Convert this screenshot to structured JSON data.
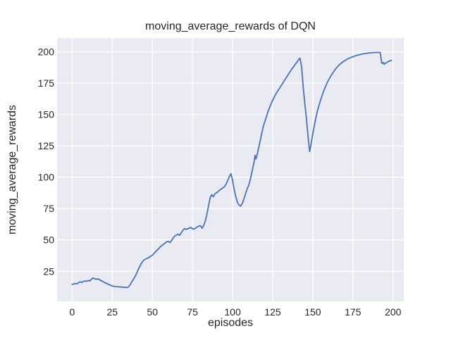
{
  "chart_data": {
    "type": "line",
    "title": "moving_average_rewards of DQN",
    "xlabel": "episodes",
    "ylabel": "moving_average_rewards",
    "x_ticks": [
      0,
      25,
      50,
      75,
      100,
      125,
      150,
      175,
      200
    ],
    "y_ticks": [
      25,
      50,
      75,
      100,
      125,
      150,
      175,
      200
    ],
    "xlim": [
      -9.4,
      206.7
    ],
    "ylim": [
      1,
      211
    ],
    "grid": true,
    "legend_position": "none",
    "style": {
      "line_color": "#4C72B0",
      "plot_bg": "#EAEAF2",
      "grid_color": "#FFFFFF",
      "figure_bg": "#FFFFFF",
      "text_color": "#262626"
    },
    "series": [
      {
        "name": "moving_average_rewards",
        "points": [
          [
            0,
            14.6
          ],
          [
            1,
            14.9
          ],
          [
            2,
            15.3
          ],
          [
            3,
            15.0
          ],
          [
            4,
            15.9
          ],
          [
            5,
            16.6
          ],
          [
            6,
            16.1
          ],
          [
            7,
            16.9
          ],
          [
            8,
            17.3
          ],
          [
            9,
            17.0
          ],
          [
            10,
            17.7
          ],
          [
            11,
            17.3
          ],
          [
            12,
            18.7
          ],
          [
            13,
            19.6
          ],
          [
            14,
            19.1
          ],
          [
            15,
            18.6
          ],
          [
            16,
            19.0
          ],
          [
            17,
            18.3
          ],
          [
            18,
            17.6
          ],
          [
            19,
            16.9
          ],
          [
            20,
            16.2
          ],
          [
            21,
            15.6
          ],
          [
            22,
            15.0
          ],
          [
            23,
            14.4
          ],
          [
            24,
            13.8
          ],
          [
            25,
            13.3
          ],
          [
            26,
            13.0
          ],
          [
            27,
            12.8
          ],
          [
            28,
            12.7
          ],
          [
            29,
            12.6
          ],
          [
            30,
            12.5
          ],
          [
            31,
            12.4
          ],
          [
            32,
            12.3
          ],
          [
            33,
            12.2
          ],
          [
            34,
            12.0
          ],
          [
            35,
            12.4
          ],
          [
            36,
            14.0
          ],
          [
            37,
            16.2
          ],
          [
            38,
            18.3
          ],
          [
            39,
            20.3
          ],
          [
            40,
            22.8
          ],
          [
            41,
            25.8
          ],
          [
            42,
            28.5
          ],
          [
            43,
            31.0
          ],
          [
            44,
            33.0
          ],
          [
            45,
            34.2
          ],
          [
            46,
            34.9
          ],
          [
            47,
            35.5
          ],
          [
            48,
            36.2
          ],
          [
            49,
            37.0
          ],
          [
            50,
            37.8
          ],
          [
            51,
            39.2
          ],
          [
            52,
            40.6
          ],
          [
            53,
            41.9
          ],
          [
            54,
            43.2
          ],
          [
            55,
            44.6
          ],
          [
            56,
            45.6
          ],
          [
            57,
            46.6
          ],
          [
            58,
            47.6
          ],
          [
            59,
            48.6
          ],
          [
            60,
            48.8
          ],
          [
            61,
            47.9
          ],
          [
            62,
            49.6
          ],
          [
            63,
            51.6
          ],
          [
            64,
            53.1
          ],
          [
            65,
            53.9
          ],
          [
            66,
            54.6
          ],
          [
            67,
            53.7
          ],
          [
            68,
            55.6
          ],
          [
            69,
            57.6
          ],
          [
            70,
            59.1
          ],
          [
            71,
            58.4
          ],
          [
            72,
            58.9
          ],
          [
            73,
            59.4
          ],
          [
            74,
            59.9
          ],
          [
            75,
            58.9
          ],
          [
            76,
            58.6
          ],
          [
            77,
            59.6
          ],
          [
            78,
            60.3
          ],
          [
            79,
            61.1
          ],
          [
            80,
            61.3
          ],
          [
            81,
            59.3
          ],
          [
            82,
            61.6
          ],
          [
            83,
            65.1
          ],
          [
            84,
            70.6
          ],
          [
            85,
            77.1
          ],
          [
            86,
            83.6
          ],
          [
            87,
            86.1
          ],
          [
            88,
            84.4
          ],
          [
            89,
            86.9
          ],
          [
            90,
            87.6
          ],
          [
            91,
            88.6
          ],
          [
            92,
            89.9
          ],
          [
            93,
            90.6
          ],
          [
            94,
            91.6
          ],
          [
            95,
            92.4
          ],
          [
            96,
            94.6
          ],
          [
            97,
            97.6
          ],
          [
            98,
            100.6
          ],
          [
            99,
            102.8
          ],
          [
            100,
            97.5
          ],
          [
            101,
            90.0
          ],
          [
            102,
            84.5
          ],
          [
            103,
            80.0
          ],
          [
            104,
            77.8
          ],
          [
            105,
            77.0
          ],
          [
            106,
            79.0
          ],
          [
            107,
            82.5
          ],
          [
            108,
            86.5
          ],
          [
            109,
            90.5
          ],
          [
            110,
            93.5
          ],
          [
            111,
            98.0
          ],
          [
            112,
            104.0
          ],
          [
            113,
            110.0
          ],
          [
            113.5,
            113.0
          ],
          [
            114,
            117.5
          ],
          [
            114.5,
            114.5
          ],
          [
            115,
            116.5
          ],
          [
            115.5,
            119.0
          ],
          [
            116,
            122.0
          ],
          [
            117,
            128.0
          ],
          [
            118,
            134.0
          ],
          [
            119,
            140.0
          ],
          [
            120,
            144.0
          ],
          [
            121,
            148.0
          ],
          [
            122,
            152.0
          ],
          [
            123,
            155.5
          ],
          [
            124,
            158.5
          ],
          [
            125,
            161.5
          ],
          [
            126,
            164.0
          ],
          [
            127,
            166.5
          ],
          [
            128,
            168.5
          ],
          [
            129,
            170.5
          ],
          [
            130,
            172.5
          ],
          [
            131,
            174.5
          ],
          [
            132,
            176.5
          ],
          [
            133,
            178.5
          ],
          [
            134,
            180.5
          ],
          [
            135,
            182.5
          ],
          [
            136,
            184.5
          ],
          [
            137,
            186.5
          ],
          [
            138,
            188.0
          ],
          [
            139,
            190.0
          ],
          [
            140,
            191.5
          ],
          [
            141,
            193.5
          ],
          [
            142,
            195.0
          ],
          [
            143,
            188.0
          ],
          [
            144,
            172.0
          ],
          [
            145,
            159.0
          ],
          [
            146,
            147.0
          ],
          [
            147,
            133.0
          ],
          [
            148,
            120.5
          ],
          [
            149,
            127.0
          ],
          [
            150,
            135.0
          ],
          [
            151,
            141.5
          ],
          [
            152,
            148.0
          ],
          [
            153,
            153.5
          ],
          [
            154,
            158.0
          ],
          [
            155,
            162.0
          ],
          [
            156,
            166.0
          ],
          [
            157,
            169.5
          ],
          [
            158,
            172.5
          ],
          [
            159,
            175.5
          ],
          [
            160,
            178.0
          ],
          [
            161,
            180.2
          ],
          [
            162,
            182.2
          ],
          [
            163,
            184.2
          ],
          [
            164,
            186.0
          ],
          [
            165,
            187.5
          ],
          [
            166,
            189.0
          ],
          [
            167,
            190.2
          ],
          [
            168,
            191.2
          ],
          [
            169,
            192.2
          ],
          [
            170,
            193.0
          ],
          [
            171,
            193.8
          ],
          [
            172,
            194.5
          ],
          [
            173,
            195.1
          ],
          [
            174,
            195.6
          ],
          [
            175,
            196.1
          ],
          [
            176,
            196.6
          ],
          [
            177,
            197.0
          ],
          [
            178,
            197.4
          ],
          [
            179,
            197.7
          ],
          [
            180,
            198.0
          ],
          [
            181,
            198.3
          ],
          [
            182,
            198.5
          ],
          [
            183,
            198.7
          ],
          [
            184,
            198.9
          ],
          [
            185,
            199.1
          ],
          [
            186,
            199.2
          ],
          [
            187,
            199.3
          ],
          [
            188,
            199.4
          ],
          [
            189,
            199.5
          ],
          [
            190,
            199.5
          ],
          [
            191,
            199.5
          ],
          [
            192,
            199.5
          ],
          [
            193,
            190.8
          ],
          [
            194,
            191.5
          ],
          [
            194.5,
            190.0
          ],
          [
            195,
            190.8
          ],
          [
            196,
            191.4
          ],
          [
            197,
            192.2
          ],
          [
            198,
            192.8
          ],
          [
            199,
            193.2
          ]
        ]
      }
    ]
  }
}
